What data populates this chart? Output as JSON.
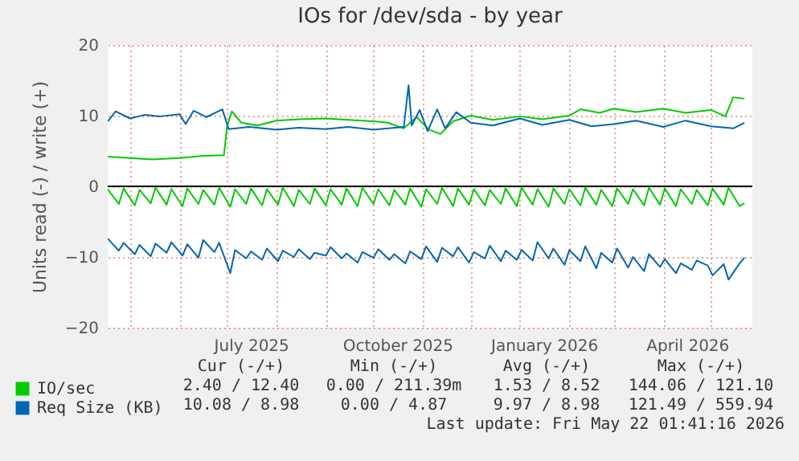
{
  "chart_data": {
    "type": "line",
    "title": "IOs for /dev/sda - by year",
    "ylabel": "Units read (-) / write (+)",
    "xlim": [
      "2025-04-17",
      "2026-05-27"
    ],
    "ylim": [
      -20,
      20
    ],
    "xticks": [
      {
        "value": "2025-05-01",
        "label": null
      },
      {
        "value": "2025-06-01",
        "label": null
      },
      {
        "value": "2025-07-01",
        "label": null
      },
      {
        "value": "2025-07-16",
        "label": "July 2025"
      },
      {
        "value": "2025-08-01",
        "label": null
      },
      {
        "value": "2025-09-01",
        "label": null
      },
      {
        "value": "2025-10-01",
        "label": null
      },
      {
        "value": "2025-10-16",
        "label": "October 2025"
      },
      {
        "value": "2025-11-01",
        "label": null
      },
      {
        "value": "2025-12-01",
        "label": null
      },
      {
        "value": "2026-01-01",
        "label": null
      },
      {
        "value": "2026-01-16",
        "label": "January 2026"
      },
      {
        "value": "2026-02-01",
        "label": null
      },
      {
        "value": "2026-03-01",
        "label": null
      },
      {
        "value": "2026-04-01",
        "label": null
      },
      {
        "value": "2026-04-16",
        "label": "April 2026"
      },
      {
        "value": "2026-05-01",
        "label": null
      }
    ],
    "yticks": [
      -20,
      -10,
      0,
      10,
      20
    ],
    "grid": true,
    "legend": "bottom",
    "line_style": "solid",
    "ref_lines": [
      {
        "axis": "y",
        "value": 0,
        "color": "#000000"
      }
    ],
    "series": [
      {
        "name": "IO/sec",
        "color": "#00cc00",
        "x": [
          "2025-04-17",
          "2025-05-01",
          "2025-05-15",
          "2025-06-01",
          "2025-06-15",
          "2025-06-29",
          "2025-07-01",
          "2025-07-04",
          "2025-07-10",
          "2025-07-20",
          "2025-08-01",
          "2025-08-15",
          "2025-09-01",
          "2025-09-15",
          "2025-10-01",
          "2025-10-10",
          "2025-10-20",
          "2025-10-28",
          "2025-11-05",
          "2025-11-12",
          "2025-11-20",
          "2025-12-01",
          "2025-12-15",
          "2026-01-01",
          "2026-01-15",
          "2026-02-01",
          "2026-02-08",
          "2026-02-20",
          "2026-03-01",
          "2026-03-15",
          "2026-04-01",
          "2026-04-15",
          "2026-05-01",
          "2026-05-10",
          "2026-05-15",
          "2026-05-22"
        ],
        "values": [
          4.2,
          4.0,
          3.8,
          4.0,
          4.3,
          4.4,
          8.5,
          10.6,
          9.0,
          8.6,
          9.3,
          9.5,
          9.6,
          9.4,
          9.2,
          9.0,
          8.2,
          9.8,
          8.0,
          7.4,
          9.2,
          10.0,
          9.4,
          9.9,
          9.5,
          10.0,
          10.9,
          10.4,
          11.0,
          10.5,
          11.0,
          10.4,
          10.8,
          9.9,
          12.6,
          12.4
        ]
      },
      {
        "name": "Req Size (KB)",
        "color": "#0066b3",
        "x": [
          "2025-04-17",
          "2025-04-22",
          "2025-05-01",
          "2025-05-10",
          "2025-05-20",
          "2025-06-01",
          "2025-06-05",
          "2025-06-10",
          "2025-06-18",
          "2025-06-28",
          "2025-07-02",
          "2025-07-15",
          "2025-08-01",
          "2025-08-15",
          "2025-09-01",
          "2025-09-15",
          "2025-10-01",
          "2025-10-20",
          "2025-10-23",
          "2025-10-25",
          "2025-10-30",
          "2025-11-04",
          "2025-11-10",
          "2025-11-15",
          "2025-11-22",
          "2025-12-01",
          "2025-12-15",
          "2026-01-01",
          "2026-01-15",
          "2026-02-01",
          "2026-02-15",
          "2026-03-01",
          "2026-03-15",
          "2026-04-01",
          "2026-04-15",
          "2026-05-01",
          "2026-05-15",
          "2026-05-22"
        ],
        "values": [
          9.2,
          10.6,
          9.6,
          10.1,
          9.9,
          10.2,
          8.8,
          10.7,
          9.8,
          10.9,
          8.1,
          8.4,
          8.0,
          8.3,
          8.1,
          8.4,
          8.0,
          8.4,
          14.3,
          8.6,
          10.8,
          7.8,
          10.9,
          8.2,
          10.5,
          9.0,
          8.6,
          9.6,
          8.7,
          9.4,
          8.5,
          8.8,
          9.3,
          8.4,
          9.3,
          8.5,
          8.2,
          9.0
        ]
      },
      {
        "color": "#00cc00",
        "x": [
          "2025-04-17",
          "2025-04-24",
          "2025-04-27",
          "2025-05-04",
          "2025-05-07",
          "2025-05-14",
          "2025-05-17",
          "2025-05-24",
          "2025-05-27",
          "2025-06-03",
          "2025-06-06",
          "2025-06-13",
          "2025-06-16",
          "2025-06-23",
          "2025-06-26",
          "2025-07-03",
          "2025-07-06",
          "2025-07-13",
          "2025-07-16",
          "2025-07-23",
          "2025-07-26",
          "2025-08-02",
          "2025-08-05",
          "2025-08-12",
          "2025-08-15",
          "2025-08-22",
          "2025-08-25",
          "2025-09-01",
          "2025-09-04",
          "2025-09-11",
          "2025-09-14",
          "2025-09-21",
          "2025-09-24",
          "2025-10-01",
          "2025-10-04",
          "2025-10-11",
          "2025-10-14",
          "2025-10-21",
          "2025-10-24",
          "2025-10-31",
          "2025-11-03",
          "2025-11-10",
          "2025-11-13",
          "2025-11-20",
          "2025-11-23",
          "2025-11-30",
          "2025-12-03",
          "2025-12-10",
          "2025-12-13",
          "2025-12-20",
          "2025-12-23",
          "2025-12-30",
          "2026-01-02",
          "2026-01-09",
          "2026-01-12",
          "2026-01-19",
          "2026-01-22",
          "2026-01-29",
          "2026-02-01",
          "2026-02-08",
          "2026-02-11",
          "2026-02-18",
          "2026-02-21",
          "2026-02-28",
          "2026-03-03",
          "2026-03-10",
          "2026-03-13",
          "2026-03-20",
          "2026-03-23",
          "2026-03-30",
          "2026-04-02",
          "2026-04-09",
          "2026-04-12",
          "2026-04-19",
          "2026-04-22",
          "2026-04-29",
          "2026-05-02",
          "2026-05-09",
          "2026-05-12",
          "2026-05-19",
          "2026-05-22"
        ],
        "values": [
          -0.4,
          -2.5,
          -0.3,
          -2.7,
          -0.5,
          -2.4,
          -0.2,
          -2.6,
          -0.4,
          -2.8,
          -0.3,
          -2.5,
          -0.5,
          -2.6,
          -0.2,
          -2.9,
          -0.4,
          -2.5,
          -0.3,
          -2.7,
          -0.4,
          -2.6,
          -0.2,
          -2.8,
          -0.5,
          -2.5,
          -0.3,
          -2.7,
          -0.4,
          -2.6,
          -0.3,
          -2.8,
          -0.2,
          -2.5,
          -0.4,
          -2.7,
          -0.5,
          -2.6,
          -0.3,
          -2.9,
          -0.4,
          -2.5,
          -0.2,
          -2.8,
          -0.3,
          -2.6,
          -0.4,
          -2.7,
          -0.5,
          -2.5,
          -0.3,
          -2.8,
          -0.2,
          -2.6,
          -0.4,
          -2.9,
          -0.3,
          -2.5,
          -0.4,
          -2.7,
          -0.2,
          -2.6,
          -0.5,
          -2.8,
          -0.3,
          -2.5,
          -0.4,
          -2.7,
          -0.2,
          -2.6,
          -0.3,
          -2.8,
          -0.4,
          -2.5,
          -0.5,
          -2.7,
          -0.3,
          -2.6,
          -0.2,
          -2.8,
          -2.4
        ]
      },
      {
        "color": "#0066b3",
        "x": [
          "2025-04-17",
          "2025-04-24",
          "2025-04-27",
          "2025-05-04",
          "2025-05-07",
          "2025-05-14",
          "2025-05-17",
          "2025-05-24",
          "2025-05-27",
          "2025-06-03",
          "2025-06-06",
          "2025-06-13",
          "2025-06-16",
          "2025-06-23",
          "2025-06-26",
          "2025-07-03",
          "2025-07-06",
          "2025-07-13",
          "2025-07-16",
          "2025-07-23",
          "2025-07-26",
          "2025-08-02",
          "2025-08-05",
          "2025-08-12",
          "2025-08-15",
          "2025-08-22",
          "2025-08-25",
          "2025-09-01",
          "2025-09-04",
          "2025-09-11",
          "2025-09-14",
          "2025-09-21",
          "2025-09-24",
          "2025-10-01",
          "2025-10-04",
          "2025-10-11",
          "2025-10-14",
          "2025-10-21",
          "2025-10-24",
          "2025-10-31",
          "2025-11-03",
          "2025-11-10",
          "2025-11-13",
          "2025-11-20",
          "2025-11-23",
          "2025-11-30",
          "2025-12-03",
          "2025-12-10",
          "2025-12-13",
          "2025-12-20",
          "2025-12-23",
          "2025-12-30",
          "2026-01-02",
          "2026-01-09",
          "2026-01-12",
          "2026-01-19",
          "2026-01-22",
          "2026-01-29",
          "2026-02-01",
          "2026-02-08",
          "2026-02-11",
          "2026-02-18",
          "2026-02-21",
          "2026-02-28",
          "2026-03-03",
          "2026-03-10",
          "2026-03-13",
          "2026-03-20",
          "2026-03-23",
          "2026-03-30",
          "2026-04-02",
          "2026-04-09",
          "2026-04-12",
          "2026-04-19",
          "2026-04-22",
          "2026-04-29",
          "2026-05-02",
          "2026-05-09",
          "2026-05-12",
          "2026-05-19",
          "2026-05-22"
        ],
        "values": [
          -7.4,
          -9.1,
          -8.0,
          -9.6,
          -8.3,
          -9.9,
          -8.1,
          -9.4,
          -7.9,
          -9.8,
          -8.2,
          -10.1,
          -7.6,
          -9.3,
          -8.0,
          -12.3,
          -9.0,
          -10.2,
          -9.2,
          -10.4,
          -8.8,
          -10.6,
          -9.1,
          -10.0,
          -8.9,
          -10.3,
          -9.4,
          -9.8,
          -8.6,
          -10.2,
          -9.5,
          -10.8,
          -9.3,
          -10.1,
          -8.9,
          -10.4,
          -9.6,
          -10.9,
          -9.2,
          -10.3,
          -8.5,
          -10.7,
          -8.7,
          -9.9,
          -8.6,
          -10.8,
          -9.3,
          -10.2,
          -8.4,
          -10.6,
          -9.1,
          -10.4,
          -9.0,
          -10.5,
          -7.9,
          -10.2,
          -8.8,
          -11.1,
          -9.0,
          -10.6,
          -8.5,
          -11.6,
          -9.4,
          -10.8,
          -8.8,
          -11.5,
          -10.0,
          -12.0,
          -9.6,
          -11.4,
          -10.3,
          -12.3,
          -10.9,
          -11.8,
          -10.5,
          -11.2,
          -12.6,
          -11.0,
          -13.2,
          -10.9,
          -10.1
        ]
      }
    ],
    "annotations": [
      "Cur (-/+)",
      "Min (-/+)",
      "Avg (-/+)",
      "Max (-/+)",
      "2.40 / 12.40",
      "0.00 / 211.39m",
      "1.53 / 8.52",
      "144.06 / 121.10",
      "10.08 / 8.98",
      "0.00 / 4.87",
      "9.97 / 8.98",
      "121.49 / 559.94",
      "Last update: Fri May 22 01:41:16 2026"
    ]
  }
}
